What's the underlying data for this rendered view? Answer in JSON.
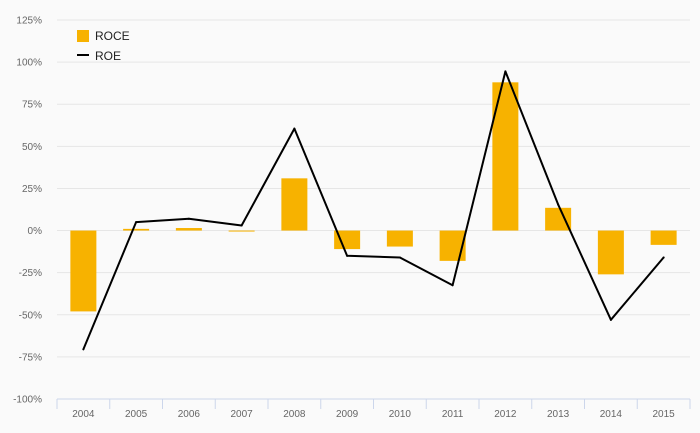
{
  "chart_data": {
    "type": "bar",
    "categories": [
      "2004",
      "2005",
      "2006",
      "2007",
      "2008",
      "2009",
      "2010",
      "2011",
      "2012",
      "2013",
      "2014",
      "2015"
    ],
    "series": [
      {
        "name": "ROCE",
        "type": "bar",
        "color": "#f7b200",
        "values": [
          -48,
          1,
          1.5,
          -0.5,
          31,
          -11,
          -9.5,
          -18,
          88,
          13.5,
          -26,
          -8.5
        ]
      },
      {
        "name": "ROE",
        "type": "line",
        "color": "#000000",
        "values": [
          -70.5,
          5,
          7,
          3,
          60.5,
          -15,
          -16,
          -32.5,
          94.5,
          15.5,
          -53,
          -16
        ]
      }
    ],
    "yticks": [
      "125%",
      "100%",
      "75%",
      "50%",
      "25%",
      "0%",
      "-25%",
      "-50%",
      "-75%",
      "-100%"
    ],
    "ylim": [
      -100,
      125
    ],
    "title": "",
    "xlabel": "",
    "ylabel": "",
    "grid": true,
    "legend_position": "top-left"
  }
}
